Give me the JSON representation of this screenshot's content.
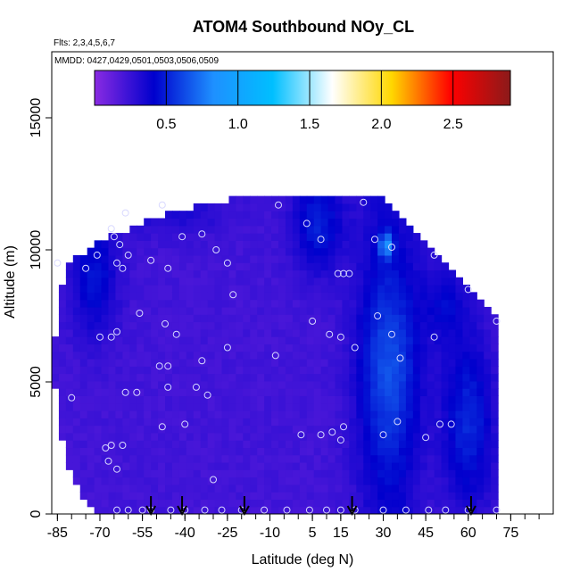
{
  "chart_data": {
    "type": "heatmap",
    "title": "ATOM4 Southbound NOy_CL",
    "flights_label": "Flts: 2,3,4,5,6,7",
    "dates_label": "MMDD: 0427,0429,0501,0503,0506,0509",
    "xlabel": "Latitude (deg N)",
    "ylabel": "Altitude (m)",
    "xlim": [
      -87,
      90
    ],
    "ylim": [
      0,
      17500
    ],
    "x_ticks": [
      -85,
      -70,
      -55,
      -40,
      -25,
      -10,
      5,
      15,
      30,
      45,
      60,
      75
    ],
    "x_tick_labels": [
      "-85",
      "-70",
      "-55",
      "-40",
      "-25",
      "-10",
      "5",
      "15",
      "30",
      "45",
      "60",
      "75"
    ],
    "y_ticks": [
      0,
      5000,
      10000,
      15000
    ],
    "y_tick_labels": [
      "0",
      "5000",
      "10000",
      "15000"
    ],
    "colorbar": {
      "min": 0,
      "max": 2.9,
      "ticks": [
        0.5,
        1.0,
        1.5,
        2.0,
        2.5
      ],
      "tick_labels": [
        "0.5",
        "1.0",
        "1.5",
        "2.0",
        "2.5"
      ],
      "colors": [
        "#8a2be2",
        "#0000cd",
        "#1e90ff",
        "#00bfff",
        "#ffffff",
        "#ffd700",
        "#ff0000",
        "#8b1a1a"
      ]
    },
    "arrow_latitudes": [
      -52,
      -41,
      -19,
      19,
      61
    ],
    "observations": [
      [
        -64,
        150
      ],
      [
        -60,
        150
      ],
      [
        -55,
        150
      ],
      [
        -52,
        150
      ],
      [
        -45,
        150
      ],
      [
        -40,
        150
      ],
      [
        -33,
        150
      ],
      [
        -27,
        150
      ],
      [
        -20,
        150
      ],
      [
        -12,
        150
      ],
      [
        -4,
        150
      ],
      [
        4,
        150
      ],
      [
        10,
        150
      ],
      [
        15,
        150
      ],
      [
        20,
        150
      ],
      [
        30,
        150
      ],
      [
        38,
        150
      ],
      [
        46,
        150
      ],
      [
        52,
        150
      ],
      [
        60,
        150
      ],
      [
        70,
        150
      ],
      [
        -68,
        2500
      ],
      [
        -66,
        2600
      ],
      [
        -62,
        2600
      ],
      [
        -64,
        1700
      ],
      [
        -67,
        2000
      ],
      [
        -30,
        1300
      ],
      [
        -40,
        3400
      ],
      [
        -48,
        3300
      ],
      [
        1,
        3000
      ],
      [
        8,
        3000
      ],
      [
        12,
        3100
      ],
      [
        15,
        2800
      ],
      [
        16,
        3300
      ],
      [
        30,
        3000
      ],
      [
        35,
        3500
      ],
      [
        45,
        2900
      ],
      [
        50,
        3400
      ],
      [
        54,
        3400
      ],
      [
        -80,
        4400
      ],
      [
        -61,
        4600
      ],
      [
        -57,
        4600
      ],
      [
        -46,
        4800
      ],
      [
        -36,
        4800
      ],
      [
        -32,
        4500
      ],
      [
        -49,
        5600
      ],
      [
        -46,
        5600
      ],
      [
        -34,
        5800
      ],
      [
        -25,
        6300
      ],
      [
        -8,
        6000
      ],
      [
        20,
        6300
      ],
      [
        36,
        5900
      ],
      [
        -70,
        6700
      ],
      [
        -66,
        6700
      ],
      [
        -64,
        6900
      ],
      [
        -56,
        7600
      ],
      [
        -47,
        7200
      ],
      [
        -43,
        6800
      ],
      [
        5,
        7300
      ],
      [
        11,
        6800
      ],
      [
        15,
        6700
      ],
      [
        28,
        7500
      ],
      [
        33,
        6800
      ],
      [
        48,
        6700
      ],
      [
        70,
        7300
      ],
      [
        -46,
        9300
      ],
      [
        -62,
        9300
      ],
      [
        -64,
        9500
      ],
      [
        -71,
        9800
      ],
      [
        -75,
        9300
      ],
      [
        -85,
        9500
      ],
      [
        -23,
        8300
      ],
      [
        14,
        9100
      ],
      [
        16,
        9100
      ],
      [
        18,
        9100
      ],
      [
        -65,
        10500
      ],
      [
        -63,
        10200
      ],
      [
        -60,
        9800
      ],
      [
        -52,
        9600
      ],
      [
        -41,
        10500
      ],
      [
        -34,
        10600
      ],
      [
        -29,
        10000
      ],
      [
        -25,
        9500
      ],
      [
        3,
        11000
      ],
      [
        8,
        10400
      ],
      [
        27,
        10400
      ],
      [
        33,
        10100
      ],
      [
        48,
        9800
      ],
      [
        60,
        8500
      ],
      [
        -66,
        10800
      ],
      [
        -61,
        11400
      ],
      [
        -48,
        11700
      ],
      [
        -7,
        11700
      ],
      [
        23,
        11800
      ]
    ]
  }
}
